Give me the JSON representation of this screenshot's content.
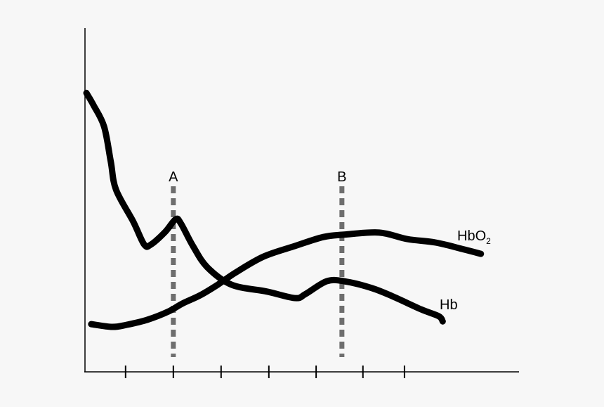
{
  "chart_data": {
    "type": "line",
    "title": "",
    "xlabel": "",
    "ylabel": "",
    "xlim": [
      0,
      9.1
    ],
    "ylim": [
      0,
      100
    ],
    "grid": false,
    "x_ticks": [
      0.85,
      1.85,
      2.85,
      3.85,
      4.84,
      5.82,
      6.69
    ],
    "series": [
      {
        "name": "Hb",
        "label": "Hb",
        "color": "#000000",
        "x": [
          0.03,
          0.18,
          0.4,
          0.54,
          0.65,
          1.01,
          1.24,
          1.38,
          1.68,
          1.9,
          2.01,
          2.26,
          2.56,
          3.07,
          3.81,
          4.4,
          4.62,
          5.06,
          5.43,
          6.01,
          6.46,
          7.04,
          7.41,
          7.49
        ],
        "y": [
          81.1,
          77.5,
          71.3,
          61.1,
          52.9,
          43.6,
          36.9,
          36.9,
          40.6,
          44.3,
          43.0,
          36.5,
          30.3,
          25.2,
          23.2,
          21.3,
          22.5,
          26.2,
          26.2,
          24.2,
          21.7,
          18.0,
          16.0,
          14.5
        ]
      },
      {
        "name": "HbO2",
        "label": "HbO",
        "label_sub": "2",
        "color": "#000000",
        "x": [
          0.13,
          0.57,
          0.87,
          1.31,
          1.75,
          2.04,
          2.41,
          2.78,
          3.15,
          3.74,
          4.4,
          4.99,
          5.43,
          6.16,
          6.75,
          7.34,
          7.93,
          8.29
        ],
        "y": [
          13.7,
          12.9,
          13.5,
          15.0,
          17.4,
          19.7,
          22.1,
          25.2,
          28.7,
          33.4,
          36.5,
          39.1,
          39.8,
          40.4,
          38.5,
          37.5,
          35.5,
          34.2
        ]
      }
    ],
    "markers": [
      {
        "label": "A",
        "x": 1.85,
        "y_from": 4.1,
        "y_to": 53.9,
        "color": "#6e6e6e"
      },
      {
        "label": "B",
        "x": 5.38,
        "y_from": 4.1,
        "y_to": 53.9,
        "color": "#6e6e6e"
      }
    ]
  }
}
